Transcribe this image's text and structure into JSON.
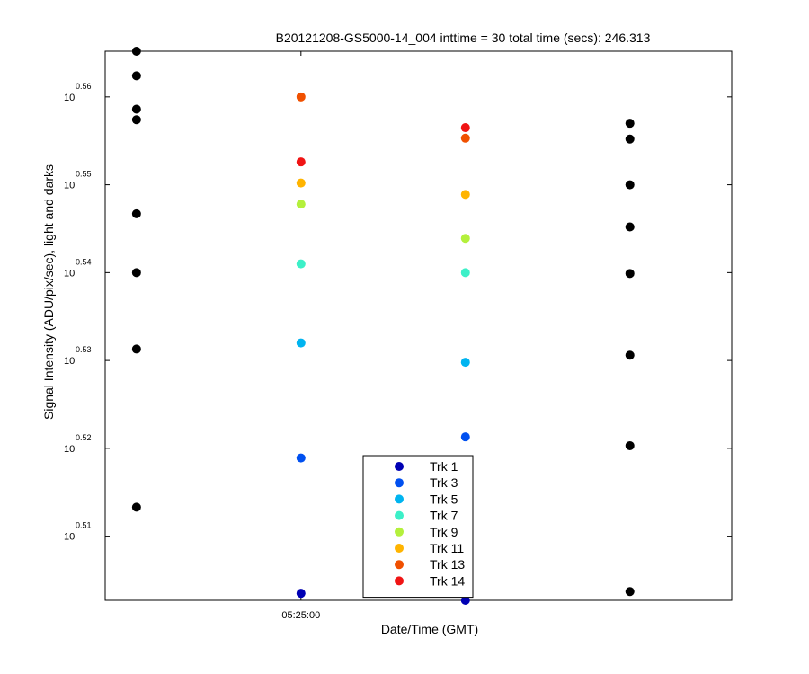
{
  "chart_data": {
    "type": "scatter",
    "title": "B20121208-GS5000-14_004 inttime = 30 total time (secs): 246.313",
    "xlabel": "Date/Time (GMT)",
    "ylabel": "Signal Intensity (ADU/pix/sec), light and darks",
    "x_tick_label": "05:25:00",
    "y_scale": "log10",
    "y_tick_base": "10",
    "y_ticks": [
      "0.51",
      "0.52",
      "0.53",
      "0.54",
      "0.55",
      "0.56"
    ],
    "y_range_exponent": [
      0.5027,
      0.5652
    ],
    "x_range": [
      0,
      4
    ],
    "x_positions": [
      0.2,
      1.25,
      2.3,
      3.35
    ],
    "grid": false,
    "legend_position": "bottom-center",
    "dark_series": {
      "color": "#000000",
      "points": [
        {
          "x": 0.2,
          "y": 0.5652
        },
        {
          "x": 0.2,
          "y": 0.5624
        },
        {
          "x": 0.2,
          "y": 0.5586
        },
        {
          "x": 0.2,
          "y": 0.5574
        },
        {
          "x": 0.2,
          "y": 0.5467
        },
        {
          "x": 0.2,
          "y": 0.54
        },
        {
          "x": 0.2,
          "y": 0.5313
        },
        {
          "x": 0.2,
          "y": 0.5133
        },
        {
          "x": 3.35,
          "y": 0.557
        },
        {
          "x": 3.35,
          "y": 0.5552
        },
        {
          "x": 3.35,
          "y": 0.55
        },
        {
          "x": 3.35,
          "y": 0.5452
        },
        {
          "x": 3.35,
          "y": 0.5399
        },
        {
          "x": 3.35,
          "y": 0.5306
        },
        {
          "x": 3.35,
          "y": 0.5203
        },
        {
          "x": 3.35,
          "y": 0.5037
        }
      ]
    },
    "series": [
      {
        "name": "Trk 1",
        "color": "#0000b4",
        "points": [
          {
            "x": 1.25,
            "y": 0.5035
          },
          {
            "x": 2.3,
            "y": 0.5027
          }
        ]
      },
      {
        "name": "Trk 3",
        "color": "#0050f0",
        "points": [
          {
            "x": 1.25,
            "y": 0.5189
          },
          {
            "x": 2.3,
            "y": 0.5213
          }
        ]
      },
      {
        "name": "Trk 5",
        "color": "#00b4f0",
        "points": [
          {
            "x": 1.25,
            "y": 0.532
          },
          {
            "x": 2.3,
            "y": 0.5298
          }
        ]
      },
      {
        "name": "Trk 7",
        "color": "#3cf0c8",
        "points": [
          {
            "x": 1.25,
            "y": 0.541
          },
          {
            "x": 2.3,
            "y": 0.54
          }
        ]
      },
      {
        "name": "Trk 9",
        "color": "#b4f03c",
        "points": [
          {
            "x": 1.25,
            "y": 0.5478
          },
          {
            "x": 2.3,
            "y": 0.5439
          }
        ]
      },
      {
        "name": "Trk 11",
        "color": "#ffb400",
        "points": [
          {
            "x": 1.25,
            "y": 0.5502
          },
          {
            "x": 2.3,
            "y": 0.5489
          }
        ]
      },
      {
        "name": "Trk 13",
        "color": "#f05000",
        "points": [
          {
            "x": 1.25,
            "y": 0.56
          },
          {
            "x": 2.3,
            "y": 0.5553
          }
        ]
      },
      {
        "name": "Trk 14",
        "color": "#f01414",
        "points": [
          {
            "x": 1.25,
            "y": 0.5526
          },
          {
            "x": 2.3,
            "y": 0.5565
          }
        ]
      }
    ]
  }
}
